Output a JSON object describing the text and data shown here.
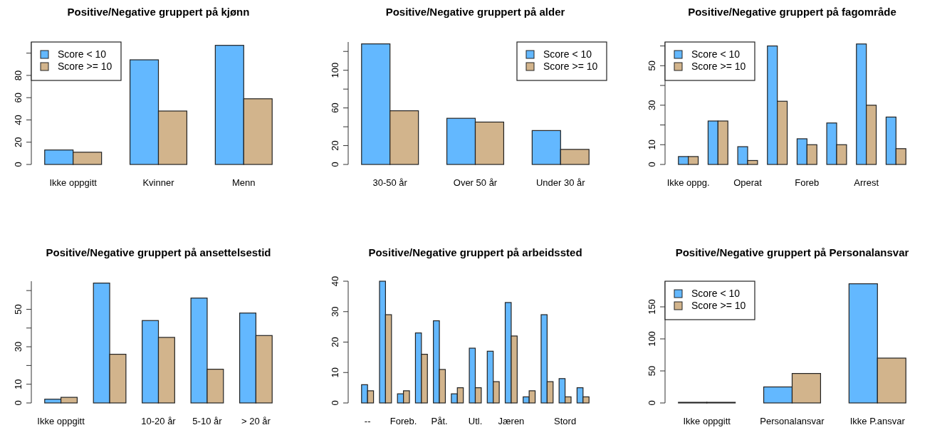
{
  "chart_data": [
    {
      "type": "bar",
      "title": "Positive/Negative gruppert på kjønn",
      "categories": [
        "Ikke oppgitt",
        "Kvinner",
        "Menn"
      ],
      "series": [
        {
          "name": "Score < 10",
          "color": "#63b8ff",
          "values": [
            13,
            94,
            107
          ]
        },
        {
          "name": "Score >= 10",
          "color": "#d2b48c",
          "values": [
            11,
            48,
            59
          ]
        }
      ],
      "ylim": [
        0,
        110
      ],
      "yticks": [
        0,
        20,
        40,
        60,
        80,
        {
          "value": 100,
          "label": null
        }
      ],
      "legend": "top left"
    },
    {
      "type": "bar",
      "title": "Positive/Negative gruppert på alder",
      "categories": [
        "30-50 år",
        "Over 50 år",
        "Under 30 år"
      ],
      "series": [
        {
          "name": "Score < 10",
          "color": "#63b8ff",
          "values": [
            128,
            49,
            36
          ]
        },
        {
          "name": "Score >= 10",
          "color": "#d2b48c",
          "values": [
            57,
            45,
            16
          ]
        }
      ],
      "ylim": [
        0,
        130
      ],
      "yticks": [
        0,
        20,
        {
          "value": 40,
          "label": null
        },
        60,
        {
          "value": 80,
          "label": null
        },
        100,
        {
          "value": 120,
          "label": null
        }
      ],
      "legend": "top right"
    },
    {
      "type": "bar",
      "title": "Positive/Negative gruppert på fagområde",
      "categories": [
        "Ikke oppg.",
        null,
        "Operat",
        null,
        "Foreb",
        null,
        "Arrest",
        null
      ],
      "series": [
        {
          "name": "Score < 10",
          "color": "#63b8ff",
          "values": [
            4,
            22,
            9,
            60,
            13,
            21,
            61,
            24
          ]
        },
        {
          "name": "Score >= 10",
          "color": "#d2b48c",
          "values": [
            4,
            22,
            2,
            32,
            10,
            10,
            30,
            8
          ]
        }
      ],
      "ylim": [
        0,
        62
      ],
      "yticks": [
        0,
        10,
        {
          "value": 20,
          "label": null
        },
        30,
        {
          "value": 40,
          "label": null
        },
        50,
        {
          "value": 60,
          "label": null
        }
      ],
      "legend": "top left"
    },
    {
      "type": "bar",
      "title": "Positive/Negative gruppert på ansettelsestid",
      "categories": [
        "Ikke oppgitt",
        null,
        "10-20 år",
        "5-10 år",
        "> 20 år"
      ],
      "series": [
        {
          "color": "#63b8ff",
          "values": [
            2,
            64,
            44,
            56,
            48
          ]
        },
        {
          "color": "#d2b48c",
          "values": [
            3,
            26,
            35,
            18,
            36
          ]
        }
      ],
      "ylim": [
        0,
        65
      ],
      "yticks": [
        0,
        10,
        {
          "value": 20,
          "label": null
        },
        30,
        {
          "value": 40,
          "label": null
        },
        50,
        {
          "value": 60,
          "label": null
        }
      ]
    },
    {
      "type": "bar",
      "title": "Positive/Negative gruppert på arbeidssted",
      "categories": [
        "--",
        null,
        "Foreb.",
        null,
        "Påt.",
        null,
        "Utl.",
        null,
        "Jæren",
        null,
        null,
        "Stord",
        null
      ],
      "series": [
        {
          "color": "#63b8ff",
          "values": [
            6,
            40,
            3,
            23,
            27,
            3,
            18,
            17,
            33,
            2,
            29,
            8,
            5
          ]
        },
        {
          "color": "#d2b48c",
          "values": [
            4,
            29,
            4,
            16,
            11,
            5,
            5,
            7,
            22,
            4,
            7,
            2,
            2
          ]
        }
      ],
      "ylim": [
        0,
        40
      ],
      "yticks": [
        0,
        10,
        20,
        30,
        40
      ]
    },
    {
      "type": "bar",
      "title": "Positive/Negative gruppert på Personalansvar",
      "categories": [
        "Ikke oppgitt",
        "Personalansvar",
        "Ikke P.ansvar"
      ],
      "series": [
        {
          "name": "Score < 10",
          "color": "#63b8ff",
          "values": [
            1,
            25,
            186
          ]
        },
        {
          "name": "Score >= 10",
          "color": "#d2b48c",
          "values": [
            1,
            46,
            70
          ]
        }
      ],
      "ylim": [
        0,
        190
      ],
      "yticks": [
        0,
        50,
        100,
        150
      ],
      "legend": "top left"
    }
  ]
}
